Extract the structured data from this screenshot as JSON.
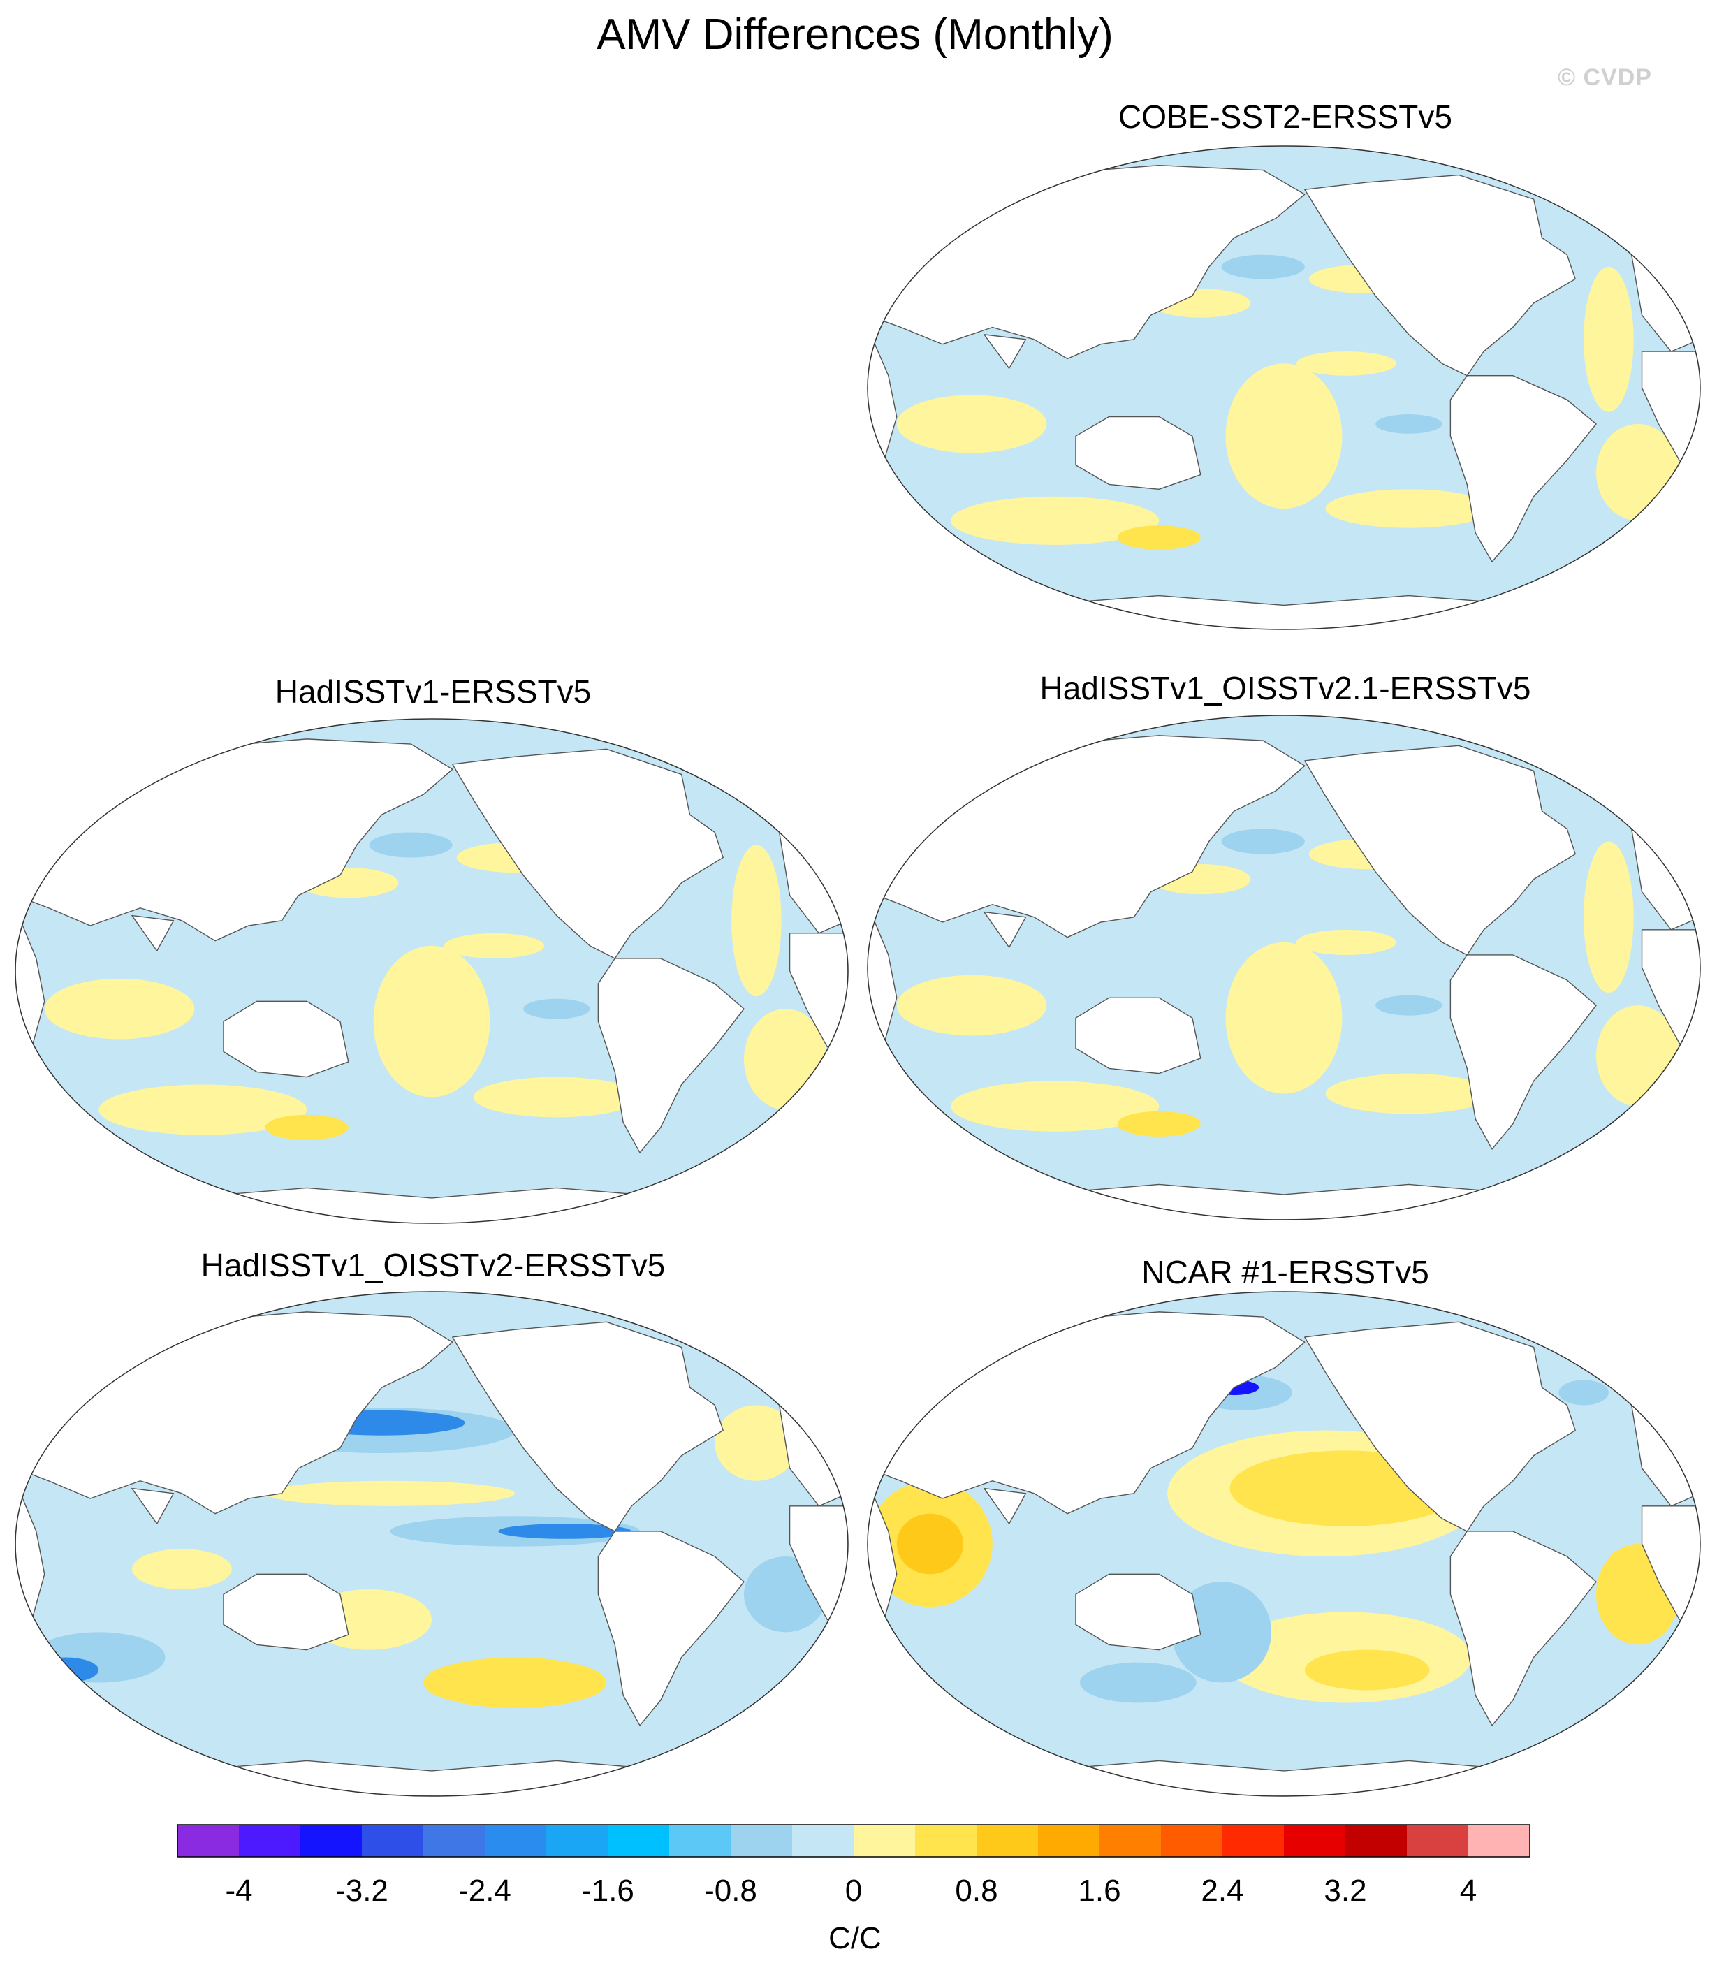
{
  "title": "AMV Differences (Monthly)",
  "watermark": "© CVDP",
  "panels": [
    {
      "id": "cobe",
      "title": "COBE-SST2-ERSSTv5",
      "pattern": "weak-mixed"
    },
    {
      "id": "hadisst",
      "title": "HadISSTv1-ERSSTv5",
      "pattern": "weak-mixed"
    },
    {
      "id": "hadisst_oi21",
      "title": "HadISSTv1_OISSTv2.1-ERSSTv5",
      "pattern": "weak-mixed"
    },
    {
      "id": "hadisst_oi2",
      "title": "HadISSTv1_OISSTv2-ERSSTv5",
      "pattern": "negative-pacific"
    },
    {
      "id": "ncar",
      "title": "NCAR #1-ERSSTv5",
      "pattern": "positive-strong"
    }
  ],
  "colorbar": {
    "units": "C/C",
    "tick_labels": [
      "-4",
      "-3.2",
      "-2.4",
      "-1.6",
      "-0.8",
      "0",
      "0.8",
      "1.6",
      "2.4",
      "3.2",
      "4"
    ],
    "colors": [
      "#8a2be2",
      "#4d1aff",
      "#1414ff",
      "#2e50e8",
      "#3f78e6",
      "#2b8cf0",
      "#1aa6f5",
      "#00c0ff",
      "#5cc8f5",
      "#9dd3ef",
      "#c5e6f5",
      "#fff59d",
      "#ffe44d",
      "#ffc91a",
      "#ffaa00",
      "#ff8000",
      "#ff5c00",
      "#ff2a00",
      "#e60000",
      "#c20000",
      "#d94040",
      "#ffb3b3"
    ]
  },
  "style": {
    "land": "#ffffff",
    "outline": "#555555",
    "neg_weak": "#c5e6f5",
    "neg_mid": "#9dd3ef",
    "neg_strong": "#2e8ae8",
    "neg_extreme": "#1414ff",
    "pos_weak": "#fff59d",
    "pos_mid": "#ffe44d",
    "pos_strong": "#ffc91a",
    "pos_extreme": "#ff2a00"
  }
}
